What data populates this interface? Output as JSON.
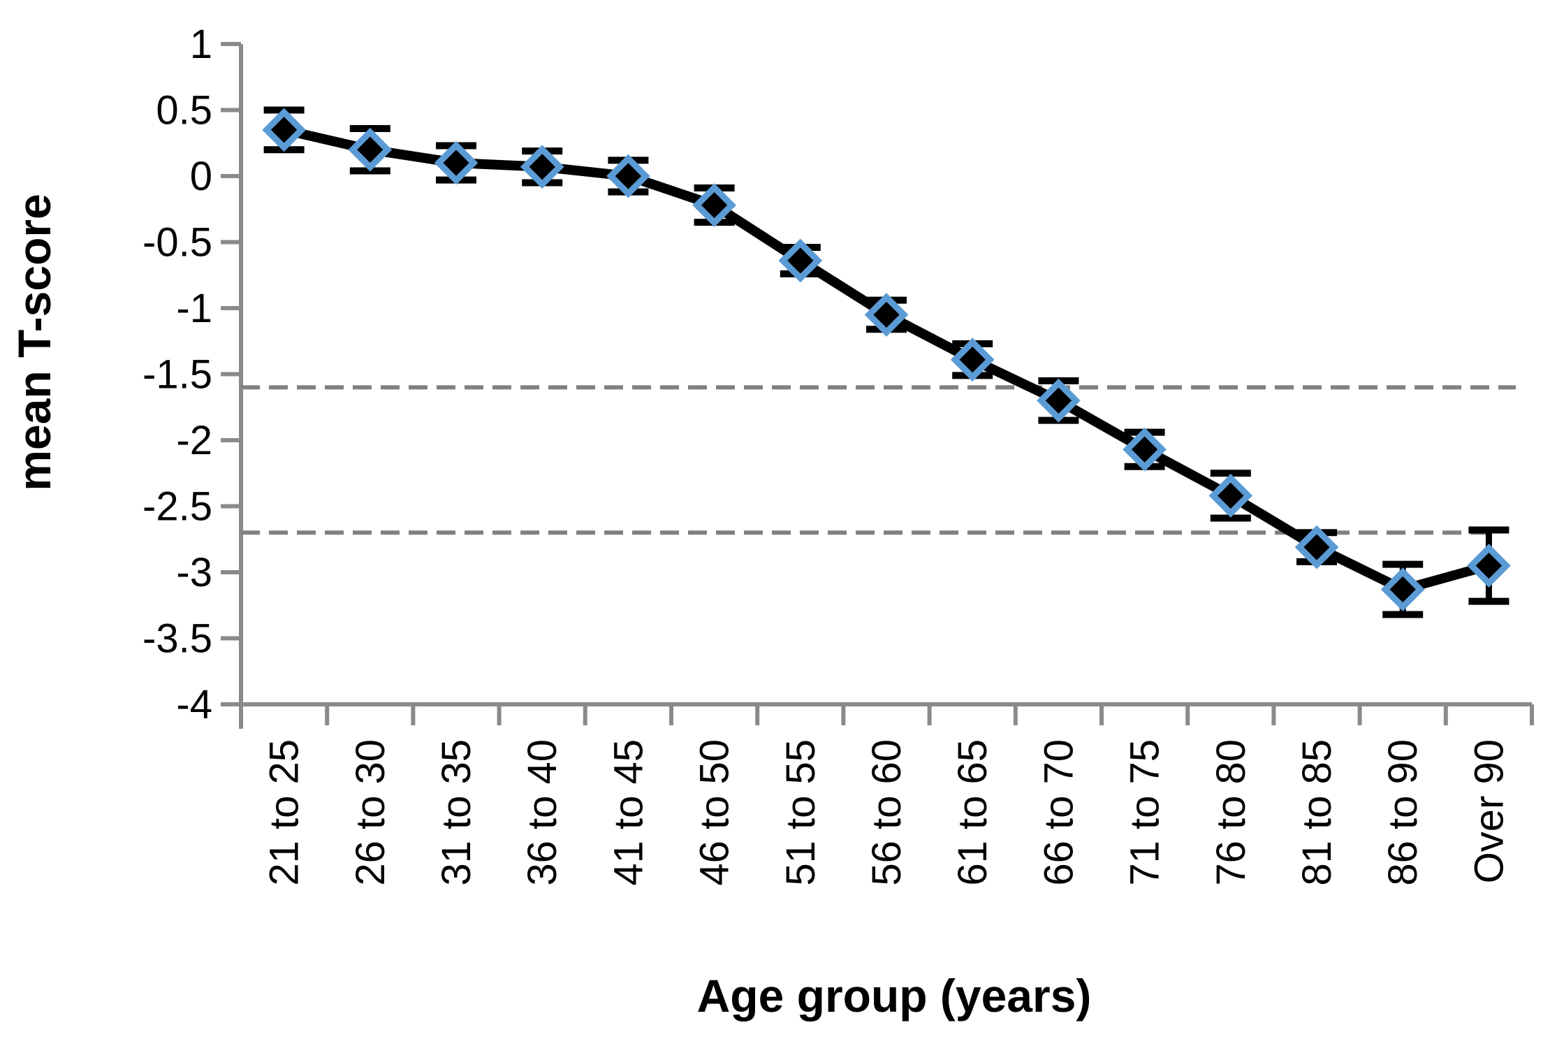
{
  "figure": {
    "background": "#FFFFFF"
  },
  "chart_data": {
    "type": "line",
    "title": "",
    "xlabel": "Age group (years)",
    "ylabel": "mean T-score",
    "categories": [
      "21 to 25",
      "26 to 30",
      "31 to 35",
      "36 to 40",
      "41 to 45",
      "46 to 50",
      "51 to 55",
      "56 to 60",
      "61 to 65",
      "66 to 70",
      "71 to 75",
      "76 to 80",
      "81 to 85",
      "86 to 90",
      "Over 90"
    ],
    "series": [
      {
        "name": "mean T-score",
        "marker": "diamond",
        "values": [
          0.35,
          0.2,
          0.1,
          0.07,
          0.0,
          -0.22,
          -0.64,
          -1.05,
          -1.39,
          -1.7,
          -2.07,
          -2.42,
          -2.81,
          -3.13,
          -2.95
        ],
        "error": [
          0.15,
          0.16,
          0.13,
          0.12,
          0.12,
          0.13,
          0.1,
          0.11,
          0.12,
          0.15,
          0.13,
          0.17,
          0.11,
          0.19,
          0.27
        ]
      }
    ],
    "reference_lines": [
      {
        "value": -1.6,
        "style": "dashed"
      },
      {
        "value": -2.7,
        "style": "dashed"
      }
    ],
    "ylim": [
      -4,
      1
    ],
    "ytick_step": 0.5,
    "ytick_labels": [
      "1",
      "0.5",
      "0",
      "-0.5",
      "-1",
      "-1.5",
      "-2",
      "-2.5",
      "-3",
      "-3.5",
      "-4"
    ],
    "xtick_rotation": -90,
    "grid": false,
    "legend": "none",
    "colors": {
      "series_line": "#000000",
      "marker_fill": "#000000",
      "marker_border": "#5B9BD5",
      "error_bar": "#000000",
      "axis": "#8A8A8A",
      "reference_line": "#808080",
      "text": "#000000"
    }
  }
}
